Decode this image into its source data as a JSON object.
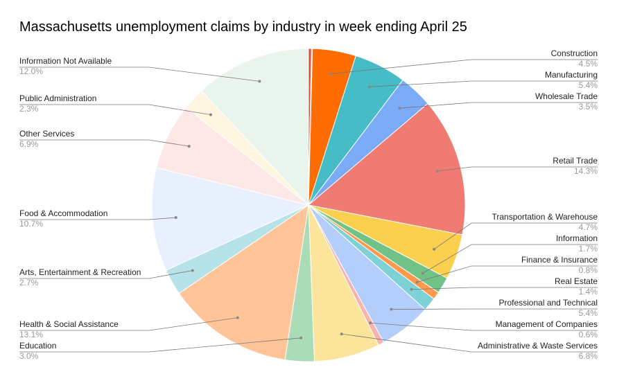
{
  "chart_data": {
    "type": "pie",
    "title": "Massachusetts unemployment claims by industry in week ending April 25",
    "start": "12 o'clock, clockwise",
    "slices": [
      {
        "label": "",
        "value": 0.3,
        "value_label": "",
        "color": "#ea4335"
      },
      {
        "label": "",
        "value": 0.1,
        "value_label": "",
        "color": "#34a853"
      },
      {
        "label": "Construction",
        "value": 4.5,
        "value_label": "4.5%",
        "color": "#ff6d01"
      },
      {
        "label": "Manufacturing",
        "value": 5.4,
        "value_label": "5.4%",
        "color": "#46bdc6"
      },
      {
        "label": "Wholesale Trade",
        "value": 3.5,
        "value_label": "3.5%",
        "color": "#7baaf7"
      },
      {
        "label": "Retail Trade",
        "value": 14.3,
        "value_label": "14.3%",
        "color": "#f07b72"
      },
      {
        "label": "Transportation & Warehouse",
        "value": 4.7,
        "value_label": "4.7%",
        "color": "#fcd04f"
      },
      {
        "label": "Information",
        "value": 1.7,
        "value_label": "1.7%",
        "color": "#71c287"
      },
      {
        "label": "Finance & Insurance",
        "value": 0.8,
        "value_label": "0.8%",
        "color": "#ff994d"
      },
      {
        "label": "Real Estate",
        "value": 1.4,
        "value_label": "1.4%",
        "color": "#7ed1d7"
      },
      {
        "label": "Professional and Technical",
        "value": 5.4,
        "value_label": "5.4%",
        "color": "#b3cefb"
      },
      {
        "label": "Management of Companies",
        "value": 0.6,
        "value_label": "0.6%",
        "color": "#f7b4ae"
      },
      {
        "label": "Administrative & Waste Services",
        "value": 6.8,
        "value_label": "6.8%",
        "color": "#fde49b"
      },
      {
        "label": "Education",
        "value": 3.0,
        "value_label": "3.0%",
        "color": "#aadcb8"
      },
      {
        "label": "Health & Social Assistance",
        "value": 13.1,
        "value_label": "13.1%",
        "color": "#ffc599"
      },
      {
        "label": "Arts, Entertainment & Recreation",
        "value": 2.7,
        "value_label": "2.7%",
        "color": "#b5e3e7"
      },
      {
        "label": "Food & Accommodation",
        "value": 10.7,
        "value_label": "10.7%",
        "color": "#e9f0fd"
      },
      {
        "label": "Other Services",
        "value": 6.9,
        "value_label": "6.9%",
        "color": "#fce8e6"
      },
      {
        "label": "Public Administration",
        "value": 2.3,
        "value_label": "2.3%",
        "color": "#fef6e1"
      },
      {
        "label": "Information Not Available",
        "value": 12.0,
        "value_label": "12.0%",
        "color": "#e8f4ec"
      }
    ]
  }
}
